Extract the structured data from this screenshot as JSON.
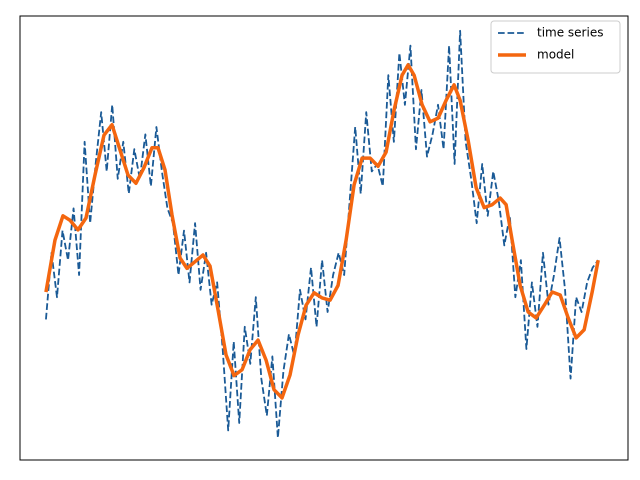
{
  "chart_data": {
    "type": "line",
    "xlim": [
      -4.7,
      105.4
    ],
    "ylim": [
      -3,
      3
    ],
    "legend": "upper right",
    "series": [
      {
        "name": "time series",
        "color": "#1a5a96",
        "dash": true,
        "width": 1.8,
        "x": [
          0,
          1,
          2,
          3,
          4,
          5,
          6,
          7,
          8,
          9,
          10,
          11,
          12,
          13,
          14,
          15,
          16,
          17,
          18,
          19,
          20,
          21,
          22,
          23,
          24,
          25,
          26,
          27,
          28,
          29,
          30,
          31,
          32,
          33,
          34,
          35,
          36,
          37,
          38,
          39,
          40,
          41,
          42,
          43,
          44,
          45,
          46,
          47,
          48,
          49,
          50,
          51,
          52,
          53,
          54,
          55,
          56,
          57,
          58,
          59,
          60,
          61,
          62,
          63,
          64,
          65,
          66,
          67,
          68,
          69,
          70,
          71,
          72,
          73,
          74,
          75,
          76,
          77,
          78,
          79,
          80,
          81,
          82,
          83,
          84,
          85,
          86,
          87,
          88,
          89,
          90,
          91,
          92,
          93,
          94,
          95,
          96,
          97,
          98,
          99,
          100
        ],
        "values": [
          -1.1,
          -0.2,
          -0.8,
          0.1,
          -0.3,
          0.4,
          -0.5,
          1.3,
          0.2,
          1.0,
          1.7,
          0.9,
          1.8,
          0.8,
          1.3,
          0.6,
          1.2,
          0.8,
          1.4,
          0.7,
          1.5,
          0.9,
          0.4,
          0.2,
          -0.5,
          0.1,
          -0.6,
          0.2,
          -0.7,
          -0.2,
          -0.9,
          -0.6,
          -1.5,
          -2.6,
          -1.4,
          -2.5,
          -1.2,
          -1.7,
          -0.8,
          -1.9,
          -2.4,
          -1.6,
          -2.7,
          -1.8,
          -1.3,
          -1.6,
          -0.7,
          -1.1,
          -0.4,
          -1.2,
          -0.3,
          -1.0,
          -0.5,
          -0.2,
          -0.5,
          0.5,
          1.5,
          0.6,
          1.7,
          0.9,
          1.0,
          0.7,
          2.2,
          1.3,
          2.5,
          1.8,
          2.6,
          1.2,
          2.0,
          1.1,
          1.4,
          1.8,
          1.2,
          2.6,
          1.0,
          2.8,
          1.3,
          0.8,
          0.2,
          1.0,
          0.3,
          0.9,
          0.5,
          -0.1,
          0.3,
          -0.8,
          -0.3,
          -1.5,
          -0.6,
          -1.2,
          -0.2,
          -0.9,
          -0.5,
          0.0,
          -0.7,
          -1.9,
          -0.8,
          -1.0,
          -0.6,
          -0.4,
          -0.3
        ]
      },
      {
        "name": "model",
        "color": "#f4660f",
        "dash": false,
        "width": 3.5,
        "x": [
          0,
          1.63,
          3.08,
          4.35,
          5.8,
          7.25,
          8.88,
          10.51,
          11.96,
          13.41,
          14.86,
          16.3,
          17.75,
          19.2,
          20.29,
          21.56,
          22.83,
          24.28,
          25.54,
          26.99,
          28.44,
          29.71,
          31.16,
          32.61,
          34.06,
          35.51,
          36.96,
          38.41,
          39.86,
          41.3,
          42.75,
          44.2,
          45.65,
          47.1,
          48.55,
          50,
          51.45,
          52.9,
          54.35,
          55.8,
          57.25,
          58.7,
          60.14,
          61.59,
          63.04,
          64.49,
          65.58,
          66.67,
          68.12,
          69.57,
          71.01,
          72.46,
          73.91,
          75,
          76.45,
          77.9,
          79.35,
          80.8,
          82.25,
          83.33,
          84.42,
          85.87,
          87.32,
          88.77,
          90.22,
          91.67,
          93.12,
          94.57,
          96.01,
          97.46,
          98.91,
          100
        ],
        "values": [
          -0.73,
          -0.03,
          0.3,
          0.24,
          0.11,
          0.27,
          0.85,
          1.39,
          1.53,
          1.19,
          0.85,
          0.74,
          0.95,
          1.22,
          1.22,
          0.92,
          0.31,
          -0.27,
          -0.41,
          -0.32,
          -0.23,
          -0.38,
          -0.97,
          -1.58,
          -1.86,
          -1.78,
          -1.51,
          -1.38,
          -1.65,
          -2.05,
          -2.16,
          -1.85,
          -1.31,
          -0.91,
          -0.74,
          -0.81,
          -0.84,
          -0.64,
          -0.03,
          0.72,
          1.08,
          1.08,
          0.97,
          1.16,
          1.73,
          2.2,
          2.34,
          2.2,
          1.8,
          1.57,
          1.62,
          1.86,
          2.07,
          1.86,
          1.32,
          0.68,
          0.41,
          0.45,
          0.54,
          0.45,
          -0.03,
          -0.64,
          -1.0,
          -1.08,
          -0.91,
          -0.73,
          -0.77,
          -1.08,
          -1.35,
          -1.24,
          -0.73,
          -0.3
        ]
      }
    ]
  }
}
